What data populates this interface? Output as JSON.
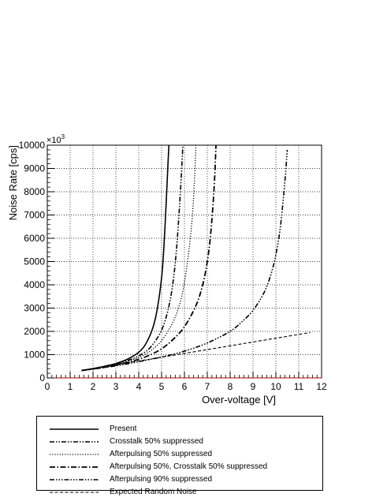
{
  "chart_data": {
    "type": "line",
    "title": "",
    "xlabel": "Over-voltage [V]",
    "ylabel": "Noise Rate [cps]",
    "y_multiplier_label": "×10",
    "y_multiplier_exp": "3",
    "xlim": [
      0,
      12
    ],
    "ylim": [
      0,
      10000
    ],
    "x_ticks": [
      "0",
      "1",
      "2",
      "3",
      "4",
      "5",
      "6",
      "7",
      "8",
      "9",
      "10",
      "11",
      "12"
    ],
    "y_ticks": [
      "0",
      "1000",
      "2000",
      "3000",
      "4000",
      "5000",
      "6000",
      "7000",
      "8000",
      "9000",
      "10000"
    ],
    "grid": true,
    "legend_position": "below",
    "series": [
      {
        "name": "Present",
        "dash": "solid",
        "x": [
          1.5,
          2.0,
          2.5,
          3.0,
          3.5,
          4.0,
          4.3,
          4.6,
          4.8,
          5.0,
          5.1,
          5.2,
          5.28,
          5.32
        ],
        "y": [
          320,
          400,
          500,
          620,
          800,
          1100,
          1450,
          2100,
          2900,
          4300,
          5600,
          7500,
          9200,
          10000
        ]
      },
      {
        "name": "Crosstalk 50% suppressed",
        "dash": "dash-dot-dot",
        "x": [
          1.5,
          2.0,
          2.5,
          3.0,
          3.5,
          4.0,
          4.5,
          5.0,
          5.3,
          5.5,
          5.65,
          5.78,
          5.88,
          5.93
        ],
        "y": [
          320,
          395,
          480,
          590,
          740,
          950,
          1300,
          2050,
          3000,
          4100,
          5500,
          7300,
          9000,
          10000
        ]
      },
      {
        "name": "Afterpulsing 50% suppressed",
        "dash": "dotted",
        "x": [
          1.5,
          2.0,
          2.5,
          3.0,
          3.5,
          4.0,
          4.5,
          5.0,
          5.5,
          5.8,
          6.0,
          6.2,
          6.35,
          6.45,
          6.5
        ],
        "y": [
          320,
          390,
          470,
          570,
          700,
          880,
          1150,
          1600,
          2400,
          3200,
          4100,
          5500,
          7000,
          8700,
          10000
        ]
      },
      {
        "name": "Afterpulsing 50%, Crosstalk 50% suppressed",
        "dash": "dash-dot",
        "x": [
          1.5,
          2.0,
          2.5,
          3.0,
          3.5,
          4.0,
          4.5,
          5.0,
          5.5,
          6.0,
          6.5,
          6.8,
          7.0,
          7.15,
          7.3,
          7.38
        ],
        "y": [
          320,
          385,
          460,
          550,
          660,
          800,
          990,
          1250,
          1650,
          2200,
          3100,
          4000,
          5000,
          6200,
          8200,
          10000
        ]
      },
      {
        "name": "Afterpulsing 90% suppressed",
        "dash": "dash-dot-dot-dot",
        "x": [
          1.5,
          2.0,
          3.0,
          4.0,
          5.0,
          6.0,
          7.0,
          8.0,
          8.5,
          9.0,
          9.5,
          9.8,
          10.0,
          10.2,
          10.4,
          10.5
        ],
        "y": [
          320,
          380,
          520,
          700,
          900,
          1150,
          1500,
          2000,
          2400,
          2900,
          3700,
          4500,
          5300,
          6500,
          8500,
          9800
        ]
      },
      {
        "name": "Expected Random Noise",
        "dash": "dashed",
        "x": [
          1.5,
          11.5
        ],
        "y": [
          320,
          1950
        ]
      }
    ]
  }
}
